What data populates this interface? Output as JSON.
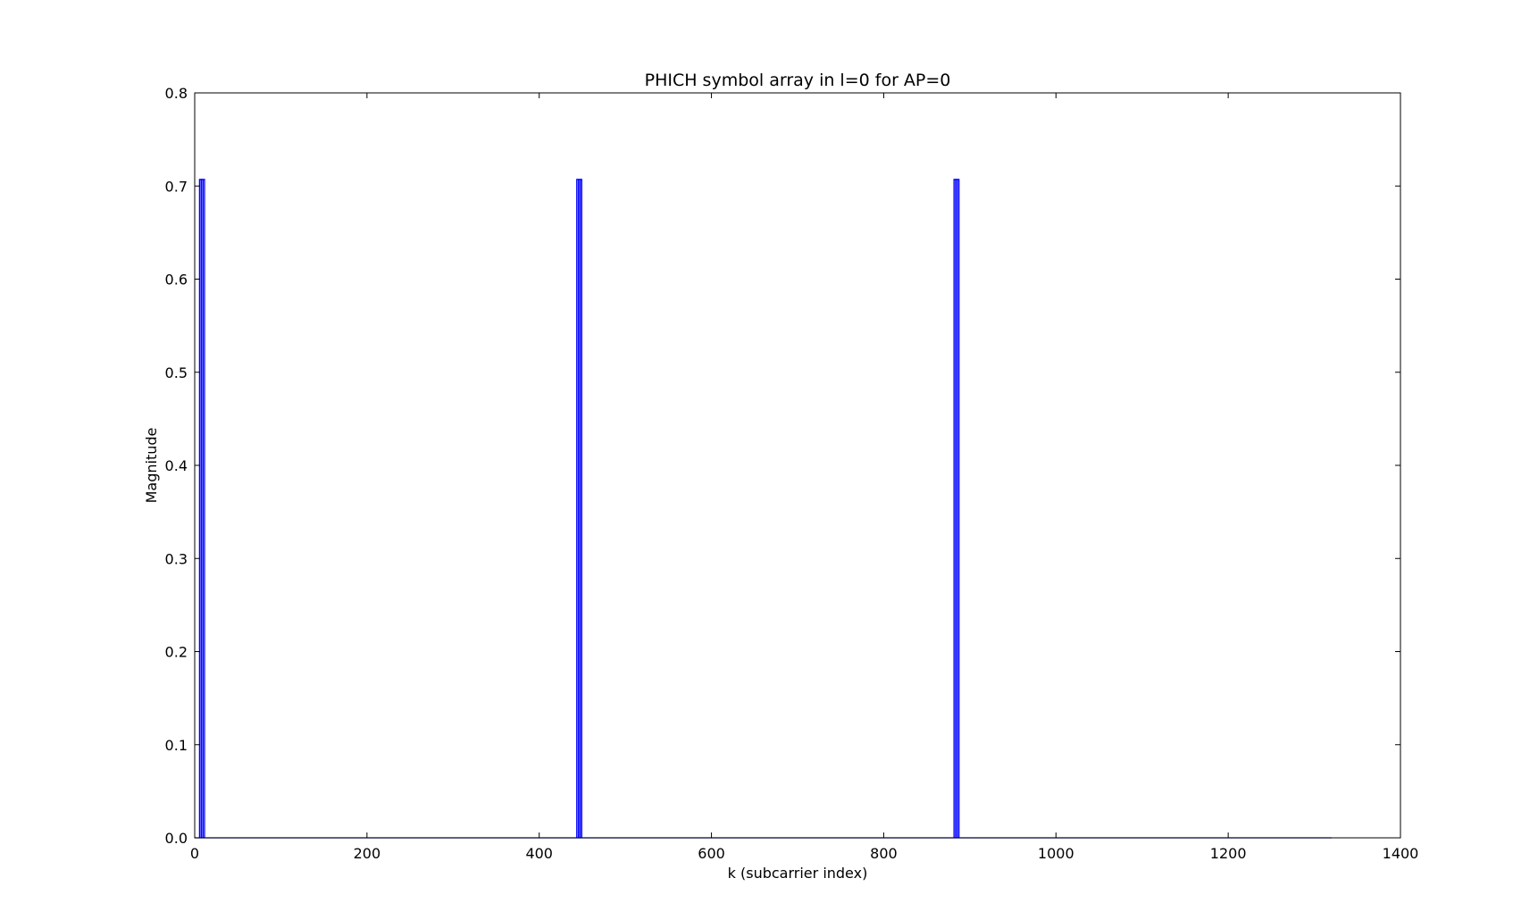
{
  "chart_data": {
    "type": "line",
    "title": "PHICH symbol array in l=0 for AP=0",
    "xlabel": "k (subcarrier index)",
    "ylabel": "Magnitude",
    "xlim": [
      0,
      1400
    ],
    "ylim": [
      0,
      0.8
    ],
    "xticks": [
      0,
      200,
      400,
      600,
      800,
      1000,
      1200,
      1400
    ],
    "yticks": [
      0.0,
      0.1,
      0.2,
      0.3,
      0.4,
      0.5,
      0.6,
      0.7,
      0.8
    ],
    "grid": false,
    "series": [
      {
        "color": "#0000ff",
        "x": [
          0,
          6,
          6,
          7,
          7,
          8,
          8,
          9,
          9,
          10,
          10,
          11,
          11,
          12,
          12,
          1320
        ],
        "y": [
          0,
          0,
          0.707,
          0.707,
          0,
          0,
          0.707,
          0.707,
          0,
          0,
          0.707,
          0.707,
          0,
          0,
          0,
          0
        ],
        "groups": [
          {
            "center": 9,
            "peaks": [
              6.5,
              8.5,
              10.5
            ]
          },
          {
            "center": 447,
            "peaks": [
              444.5,
              446.5,
              448.5
            ]
          },
          {
            "center": 885,
            "peaks": [
              882.5,
              884.5,
              886.5
            ]
          }
        ],
        "peak_value": 0.707,
        "x_end": 1320
      }
    ]
  }
}
